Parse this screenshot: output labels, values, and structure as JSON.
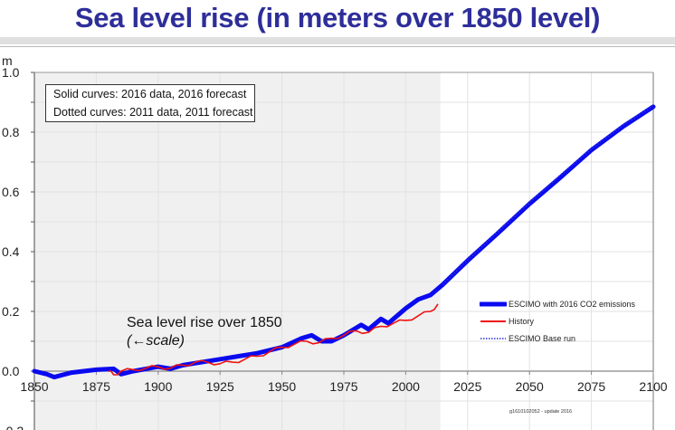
{
  "header": {
    "title": "Sea level rise (in meters over 1850 level)"
  },
  "notes": {
    "line1": "Solid curves: 2016 data, 2016 forecast",
    "line2": "Dotted curves: 2011 data, 2011 forecast"
  },
  "annotation": {
    "line1": "Sea level rise over 1850",
    "line2": "(←scale)"
  },
  "footnote": "g1610102052 - update 2016",
  "colors": {
    "escimo_2016": "#0a0af0",
    "history": "#ee1111",
    "base_run": "#2a2ae0",
    "title": "#2e2e9a",
    "shade": "#f0f0f0"
  },
  "chart_data": {
    "type": "line",
    "title": "Sea level rise (in meters over 1850 level)",
    "xlabel": "",
    "ylabel": "m",
    "xlim": [
      1850,
      2100
    ],
    "ylim": [
      -0.2,
      1.0
    ],
    "x_ticks": [
      1850,
      1875,
      1900,
      1925,
      1950,
      1975,
      2000,
      2025,
      2050,
      2075,
      2100
    ],
    "y_ticks": [
      -0.2,
      0.0,
      0.2,
      0.4,
      0.6,
      0.8,
      1.0
    ],
    "y_tick_labels": [
      "-0.2",
      "0.0",
      "0.2",
      "0.4",
      "0.6",
      "0.8",
      "1.0"
    ],
    "grid": true,
    "shaded_history_region": [
      1850,
      2014
    ],
    "legend_position": "bottom-right",
    "series": [
      {
        "name": "ESCIMO with 2016 CO2 emissions",
        "style": "solid-thick",
        "x": [
          1850,
          1855,
          1858,
          1865,
          1875,
          1882,
          1885,
          1890,
          1900,
          1905,
          1910,
          1925,
          1940,
          1950,
          1958,
          1962,
          1966,
          1970,
          1975,
          1982,
          1985,
          1990,
          1993,
          2000,
          2005,
          2010,
          2015,
          2025,
          2037,
          2050,
          2062,
          2075,
          2088,
          2100
        ],
        "values": [
          0.0,
          -0.01,
          -0.02,
          -0.005,
          0.005,
          0.008,
          -0.01,
          0.0,
          0.015,
          0.008,
          0.02,
          0.04,
          0.06,
          0.08,
          0.11,
          0.12,
          0.1,
          0.1,
          0.12,
          0.155,
          0.14,
          0.175,
          0.16,
          0.21,
          0.24,
          0.255,
          0.29,
          0.37,
          0.46,
          0.56,
          0.645,
          0.74,
          0.82,
          0.885
        ]
      },
      {
        "name": "History",
        "style": "solid-thin",
        "x": [
          1880,
          1882,
          1885,
          1890,
          1895,
          1900,
          1905,
          1910,
          1915,
          1920,
          1925,
          1930,
          1935,
          1940,
          1945,
          1950,
          1955,
          1960,
          1965,
          1970,
          1975,
          1980,
          1985,
          1990,
          1995,
          2000,
          2005,
          2010,
          2013
        ],
        "values": [
          0.0,
          -0.012,
          0.0,
          0.005,
          0.01,
          0.015,
          0.01,
          0.02,
          0.03,
          0.03,
          0.025,
          0.03,
          0.04,
          0.05,
          0.065,
          0.08,
          0.09,
          0.1,
          0.095,
          0.11,
          0.12,
          0.135,
          0.13,
          0.15,
          0.16,
          0.17,
          0.185,
          0.2,
          0.225
        ]
      },
      {
        "name": "ESCIMO Base run",
        "style": "dotted",
        "x": [
          2015,
          2025,
          2037,
          2050,
          2062,
          2075,
          2088,
          2100
        ],
        "values": [
          0.29,
          0.372,
          0.465,
          0.565,
          0.652,
          0.745,
          0.825,
          0.888
        ]
      }
    ]
  }
}
